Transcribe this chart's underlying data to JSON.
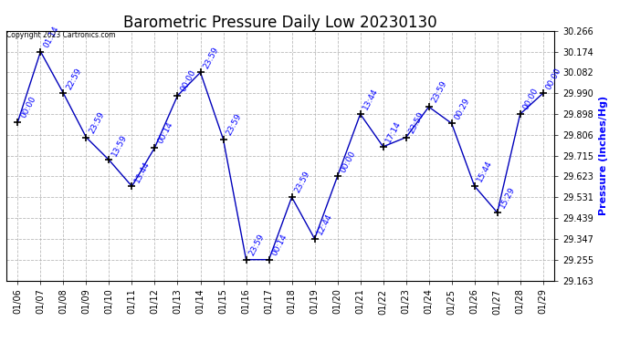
{
  "title": "Barometric Pressure Daily Low 20230130",
  "ylabel": "Pressure (Inches/Hg)",
  "copyright": "Copyright 2023 Cartronics.com",
  "line_color": "#0000bb",
  "background_color": "#ffffff",
  "grid_color": "#aaaaaa",
  "text_color_blue": "#0000ff",
  "text_color_black": "#000000",
  "ylim": [
    29.163,
    30.266
  ],
  "yticks": [
    29.163,
    29.255,
    29.347,
    29.439,
    29.531,
    29.623,
    29.715,
    29.806,
    29.898,
    29.99,
    30.082,
    30.174,
    30.266
  ],
  "dates": [
    "01/06",
    "01/07",
    "01/08",
    "01/09",
    "01/10",
    "01/11",
    "01/12",
    "01/13",
    "01/14",
    "01/15",
    "01/16",
    "01/17",
    "01/18",
    "01/19",
    "01/20",
    "01/21",
    "01/22",
    "01/23",
    "01/24",
    "01/25",
    "01/26",
    "01/27",
    "01/28",
    "01/29"
  ],
  "pressures": [
    29.863,
    30.174,
    29.99,
    29.795,
    29.695,
    29.579,
    29.75,
    29.98,
    30.082,
    29.787,
    29.255,
    29.255,
    29.531,
    29.347,
    29.623,
    29.898,
    29.754,
    29.795,
    29.93,
    29.857,
    29.58,
    29.463,
    29.898,
    29.99
  ],
  "times": [
    "00:00",
    "01:14",
    "22:59",
    "23:59",
    "13:59",
    "13:44",
    "00:14",
    "00:00",
    "23:59",
    "23:59",
    "23:59",
    "00:14",
    "23:59",
    "12:44",
    "00:00",
    "13:44",
    "17:14",
    "23:59",
    "23:59",
    "00:29",
    "15:44",
    "15:29",
    "00:00",
    "00:00"
  ],
  "title_fontsize": 12,
  "axis_fontsize": 7,
  "ylabel_fontsize": 8,
  "annot_fontsize": 6.5
}
